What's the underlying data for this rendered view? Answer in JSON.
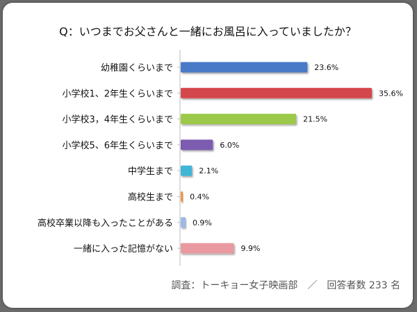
{
  "chart_data": {
    "type": "bar",
    "orientation": "horizontal",
    "title": "Q：いつまでお父さんと一緒にお風呂に入っていましたか？",
    "categories": [
      "幼稚園くらいまで",
      "小学校1、2年生くらいまで",
      "小学校3，4年生くらいまで",
      "小学校5、6年生くらいまで",
      "中学生まで",
      "高校生まで",
      "高校卒業以降も入ったことがある",
      "一緒に入った記憶がない"
    ],
    "values": [
      23.6,
      35.6,
      21.5,
      6.0,
      2.1,
      0.4,
      0.9,
      9.9
    ],
    "value_labels": [
      "23.6%",
      "35.6%",
      "21.5%",
      "6.0%",
      "2.1%",
      "0.4%",
      "0.9%",
      "9.9%"
    ],
    "colors": [
      "#4a7ac7",
      "#d4474e",
      "#9cc94a",
      "#7b5bb0",
      "#3fb5d6",
      "#ef9a3c",
      "#9db9e6",
      "#e99aa0"
    ],
    "xlim": [
      0,
      35.6
    ],
    "xlabel": "",
    "ylabel": "",
    "grid": false,
    "legend": "none"
  },
  "footer": {
    "source": "調査：トーキョー女子映画部　／　回答者数 233 名"
  }
}
